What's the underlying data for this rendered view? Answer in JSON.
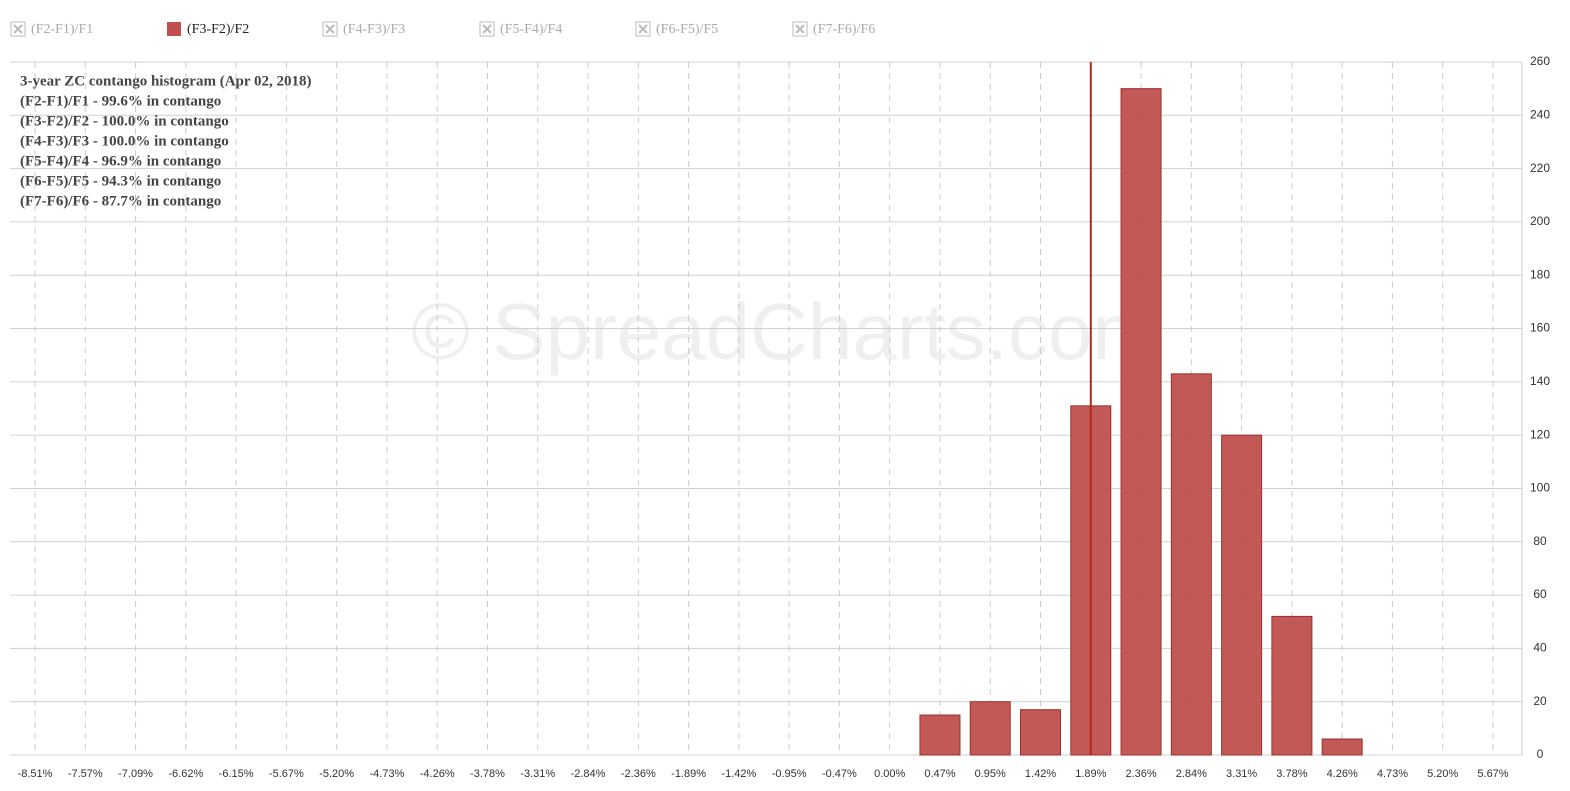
{
  "chart_data": {
    "type": "bar",
    "watermark": "© SpreadCharts.com",
    "annotation_lines": [
      "3-year ZC contango histogram (Apr 02, 2018)",
      "(F2-F1)/F1 - 99.6% in contango",
      "(F3-F2)/F2 - 100.0% in contango",
      "(F4-F3)/F3 - 100.0% in contango",
      "(F5-F4)/F4 - 96.9% in contango",
      "(F6-F5)/F5 - 94.3% in contango",
      "(F7-F6)/F6 - 87.7% in contango"
    ],
    "categories": [
      "-8.51%",
      "-7.57%",
      "-7.09%",
      "-6.62%",
      "-6.15%",
      "-5.67%",
      "-5.20%",
      "-4.73%",
      "-4.26%",
      "-3.78%",
      "-3.31%",
      "-2.84%",
      "-2.36%",
      "-1.89%",
      "-1.42%",
      "-0.95%",
      "-0.47%",
      "0.00%",
      "0.47%",
      "0.95%",
      "1.42%",
      "1.89%",
      "2.36%",
      "2.84%",
      "3.31%",
      "3.78%",
      "4.26%",
      "4.73%",
      "5.20%",
      "5.67%"
    ],
    "series": [
      {
        "name": "(F2-F1)/F1",
        "visible": false
      },
      {
        "name": "(F3-F2)/F2",
        "visible": true,
        "color": "#c0504d",
        "values": [
          0,
          0,
          0,
          0,
          0,
          0,
          0,
          0,
          0,
          0,
          0,
          0,
          0,
          0,
          0,
          0,
          0,
          0,
          15,
          20,
          17,
          131,
          250,
          143,
          120,
          52,
          6,
          0,
          0,
          0
        ]
      },
      {
        "name": "(F4-F3)/F3",
        "visible": false
      },
      {
        "name": "(F5-F4)/F4",
        "visible": false
      },
      {
        "name": "(F6-F5)/F5",
        "visible": false
      },
      {
        "name": "(F7-F6)/F6",
        "visible": false
      }
    ],
    "marker_x": 1.89,
    "marker_color": "#b22a1e",
    "ylim": [
      0,
      260
    ],
    "yticks": [
      0,
      20,
      40,
      60,
      80,
      100,
      120,
      140,
      160,
      180,
      200,
      220,
      240,
      260
    ],
    "grid": true
  }
}
